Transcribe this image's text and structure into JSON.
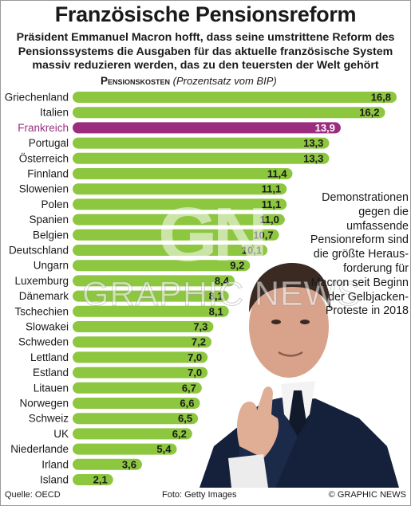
{
  "header": {
    "title": "Französische Pensionsreform",
    "subtitle": "Präsident Emmanuel Macron hofft, dass seine umstrittene Reform des Pensionssystems die Ausgaben für das aktuelle französische System massiv reduzieren werden, das zu den teuersten der Welt gehört"
  },
  "chart_label": {
    "caption": "Pensionskosten",
    "unit": "(Prozentsatz vom BIP)"
  },
  "annotation": "Demonstrationen gegen die umfassende Pensionreform sind die größte Heraus-forderung für Macron seit Beginn der Gelbjacken-Proteste in 2018",
  "watermark": {
    "logo": "GN",
    "text": "GRAPHIC NEWS"
  },
  "footer": {
    "source": "Quelle: OECD",
    "photo": "Foto: Getty Images",
    "copyright": "© GRAPHIC NEWS"
  },
  "colors": {
    "bar": "#8dc63f",
    "highlight": "#9b2d7f",
    "background": "#ffffff"
  },
  "chart_data": {
    "type": "bar",
    "orientation": "horizontal",
    "title": "Pensionskosten",
    "subtitle": "(Prozentsatz vom BIP)",
    "categories": [
      "Griechenland",
      "Italien",
      "Frankreich",
      "Portugal",
      "Österreich",
      "Finnland",
      "Slowenien",
      "Polen",
      "Spanien",
      "Belgien",
      "Deutschland",
      "Ungarn",
      "Luxemburg",
      "Dänemark",
      "Tschechien",
      "Slowakei",
      "Schweden",
      "Lettland",
      "Estland",
      "Litauen",
      "Norwegen",
      "Schweiz",
      "UK",
      "Niederlande",
      "Irland",
      "Island"
    ],
    "values": [
      16.8,
      16.2,
      13.9,
      13.3,
      13.3,
      11.4,
      11.1,
      11.1,
      11.0,
      10.7,
      10.1,
      9.2,
      8.4,
      8.1,
      8.1,
      7.3,
      7.2,
      7.0,
      7.0,
      6.7,
      6.6,
      6.5,
      6.2,
      5.4,
      3.6,
      2.1
    ],
    "value_labels": [
      "16,8",
      "16,2",
      "13,9",
      "13,3",
      "13,3",
      "11,4",
      "11,1",
      "11,1",
      "11,0",
      "10,7",
      "10,1",
      "9,2",
      "8,4",
      "8,1",
      "8,1",
      "7,3",
      "7,2",
      "7,0",
      "7,0",
      "6,7",
      "6,6",
      "6,5",
      "6,2",
      "5,4",
      "3,6",
      "2,1"
    ],
    "highlight": "Frankreich",
    "xlim": [
      0,
      16.8
    ],
    "grid": false,
    "legend": "none"
  }
}
